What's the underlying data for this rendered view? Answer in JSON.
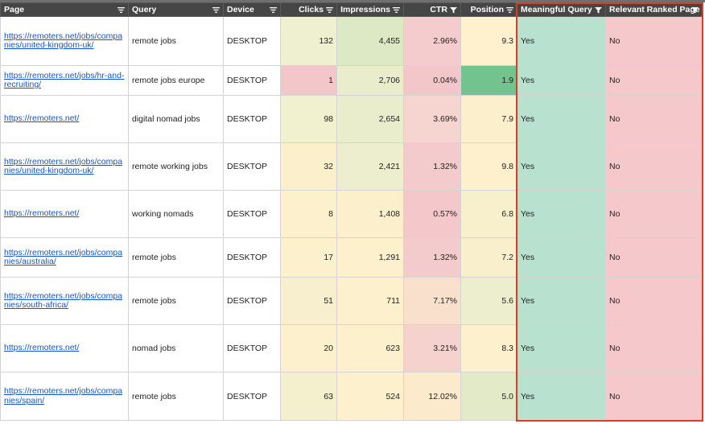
{
  "colors": {
    "header_bg": "#464646",
    "link": "#1155cc",
    "yes_bg": "#b8e2cf",
    "no_bg": "#f5c9cc",
    "highlight_border": "#e03b24"
  },
  "table": {
    "columns": [
      {
        "key": "page",
        "label": "Page",
        "filter_icon": "filter-lines-icon"
      },
      {
        "key": "query",
        "label": "Query",
        "filter_icon": "filter-lines-icon"
      },
      {
        "key": "device",
        "label": "Device",
        "filter_icon": "filter-lines-icon"
      },
      {
        "key": "clicks",
        "label": "Clicks",
        "filter_icon": "filter-lines-icon"
      },
      {
        "key": "impressions",
        "label": "Impressions",
        "filter_icon": "filter-lines-icon"
      },
      {
        "key": "ctr",
        "label": "CTR",
        "filter_icon": "filter-funnel-icon"
      },
      {
        "key": "position",
        "label": "Position",
        "filter_icon": "filter-lines-icon"
      },
      {
        "key": "meaningful_query",
        "label": "Meaningful Query",
        "filter_icon": "filter-funnel-icon"
      },
      {
        "key": "relevant_ranked_page",
        "label": "Relevant Ranked Page",
        "filter_icon": "filter-funnel-icon"
      }
    ],
    "rows": [
      {
        "page": "https://remoters.net/jobs/companies/united-kingdom-uk/",
        "query": "remote jobs",
        "device": "DESKTOP",
        "clicks": "132",
        "impressions": "4,455",
        "ctr": "2.96%",
        "position": "9.3",
        "meaningful_query": "Yes",
        "relevant_ranked_page": "No",
        "bg": {
          "clicks": "#eef0cf",
          "impressions": "#dde8c4",
          "ctr": "#f5cccd",
          "position": "#fff1cd"
        }
      },
      {
        "page": "https://remoters.net/jobs/hr-and-recruiting/",
        "query": "remote jobs europe",
        "device": "DESKTOP",
        "clicks": "1",
        "impressions": "2,706",
        "ctr": "0.04%",
        "position": "1.9",
        "meaningful_query": "Yes",
        "relevant_ranked_page": "No",
        "bg": {
          "clicks": "#f3c6c9",
          "impressions": "#e9edcc",
          "ctr": "#f3c6c9",
          "position": "#72c38e"
        }
      },
      {
        "page": "https://remoters.net/",
        "query": "digital nomad jobs",
        "device": "DESKTOP",
        "clicks": "98",
        "impressions": "2,654",
        "ctr": "3.69%",
        "position": "7.9",
        "meaningful_query": "Yes",
        "relevant_ranked_page": "No",
        "bg": {
          "clicks": "#f1f1cf",
          "impressions": "#eaedcc",
          "ctr": "#f6d4d0",
          "position": "#fbefcc"
        }
      },
      {
        "page": "https://remoters.net/jobs/companies/united-kingdom-uk/",
        "query": "remote working jobs",
        "device": "DESKTOP",
        "clicks": "32",
        "impressions": "2,421",
        "ctr": "1.32%",
        "position": "9.8",
        "meaningful_query": "Yes",
        "relevant_ranked_page": "No",
        "bg": {
          "clicks": "#fbefcc",
          "impressions": "#edeecd",
          "ctr": "#f4cbcc",
          "position": "#fff0cd"
        }
      },
      {
        "page": "https://remoters.net/",
        "query": "working nomads",
        "device": "DESKTOP",
        "clicks": "8",
        "impressions": "1,408",
        "ctr": "0.57%",
        "position": "6.8",
        "meaningful_query": "Yes",
        "relevant_ranked_page": "No",
        "bg": {
          "clicks": "#fdf0cc",
          "impressions": "#fbefcc",
          "ctr": "#f4c8cb",
          "position": "#f8f0cd"
        }
      },
      {
        "page": "https://remoters.net/jobs/companies/australia/",
        "query": "remote jobs",
        "device": "DESKTOP",
        "clicks": "17",
        "impressions": "1,291",
        "ctr": "1.32%",
        "position": "7.2",
        "meaningful_query": "Yes",
        "relevant_ranked_page": "No",
        "bg": {
          "clicks": "#fdf0cc",
          "impressions": "#fdf0cc",
          "ctr": "#f4cbcc",
          "position": "#f9efcc"
        }
      },
      {
        "page": "https://remoters.net/jobs/companies/south-africa/",
        "query": "remote jobs",
        "device": "DESKTOP",
        "clicks": "51",
        "impressions": "711",
        "ctr": "7.17%",
        "position": "5.6",
        "meaningful_query": "Yes",
        "relevant_ranked_page": "No",
        "bg": {
          "clicks": "#f7efcd",
          "impressions": "#fdf0cc",
          "ctr": "#f9e0cd",
          "position": "#edeecd"
        }
      },
      {
        "page": "https://remoters.net/",
        "query": "nomad jobs",
        "device": "DESKTOP",
        "clicks": "20",
        "impressions": "623",
        "ctr": "3.21%",
        "position": "8.3",
        "meaningful_query": "Yes",
        "relevant_ranked_page": "No",
        "bg": {
          "clicks": "#fdf0cc",
          "impressions": "#fdf0cc",
          "ctr": "#f6d2ce",
          "position": "#fdf0cc"
        }
      },
      {
        "page": "https://remoters.net/jobs/companies/spain/",
        "query": "remote jobs",
        "device": "DESKTOP",
        "clicks": "63",
        "impressions": "524",
        "ctr": "12.02%",
        "position": "5.0",
        "meaningful_query": "Yes",
        "relevant_ranked_page": "No",
        "bg": {
          "clicks": "#f4f0cd",
          "impressions": "#fdf0cc",
          "ctr": "#fbeacc",
          "position": "#e3eac7"
        }
      }
    ]
  }
}
